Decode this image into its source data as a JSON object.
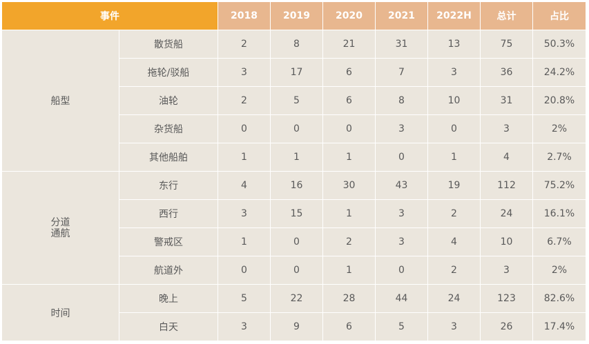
{
  "header": {
    "event": "事件",
    "years": [
      "2018",
      "2019",
      "2020",
      "2021",
      "2022H"
    ],
    "total": "总计",
    "share": "占比"
  },
  "groups": [
    {
      "label": "船型",
      "rows": [
        {
          "sub": "散货船",
          "vals": [
            "2",
            "8",
            "21",
            "31",
            "13"
          ],
          "total": "75",
          "share": "50.3%"
        },
        {
          "sub": "拖轮/驳船",
          "vals": [
            "3",
            "17",
            "6",
            "7",
            "3"
          ],
          "total": "36",
          "share": "24.2%"
        },
        {
          "sub": "油轮",
          "vals": [
            "2",
            "5",
            "6",
            "8",
            "10"
          ],
          "total": "31",
          "share": "20.8%"
        },
        {
          "sub": "杂货船",
          "vals": [
            "0",
            "0",
            "0",
            "3",
            "0"
          ],
          "total": "3",
          "share": "2%"
        },
        {
          "sub": "其他船舶",
          "vals": [
            "1",
            "1",
            "1",
            "0",
            "1"
          ],
          "total": "4",
          "share": "2.7%"
        }
      ]
    },
    {
      "label": "分道\n通航",
      "rows": [
        {
          "sub": "东行",
          "vals": [
            "4",
            "16",
            "30",
            "43",
            "19"
          ],
          "total": "112",
          "share": "75.2%"
        },
        {
          "sub": "西行",
          "vals": [
            "3",
            "15",
            "1",
            "3",
            "2"
          ],
          "total": "24",
          "share": "16.1%"
        },
        {
          "sub": "警戒区",
          "vals": [
            "1",
            "0",
            "2",
            "3",
            "4"
          ],
          "total": "10",
          "share": "6.7%"
        },
        {
          "sub": "航道外",
          "vals": [
            "0",
            "0",
            "1",
            "0",
            "2"
          ],
          "total": "3",
          "share": "2%"
        }
      ]
    },
    {
      "label": "时间",
      "rows": [
        {
          "sub": "晚上",
          "vals": [
            "5",
            "22",
            "28",
            "44",
            "24"
          ],
          "total": "123",
          "share": "82.6%"
        },
        {
          "sub": "白天",
          "vals": [
            "3",
            "9",
            "6",
            "5",
            "3"
          ],
          "total": "26",
          "share": "17.4%"
        }
      ]
    }
  ]
}
